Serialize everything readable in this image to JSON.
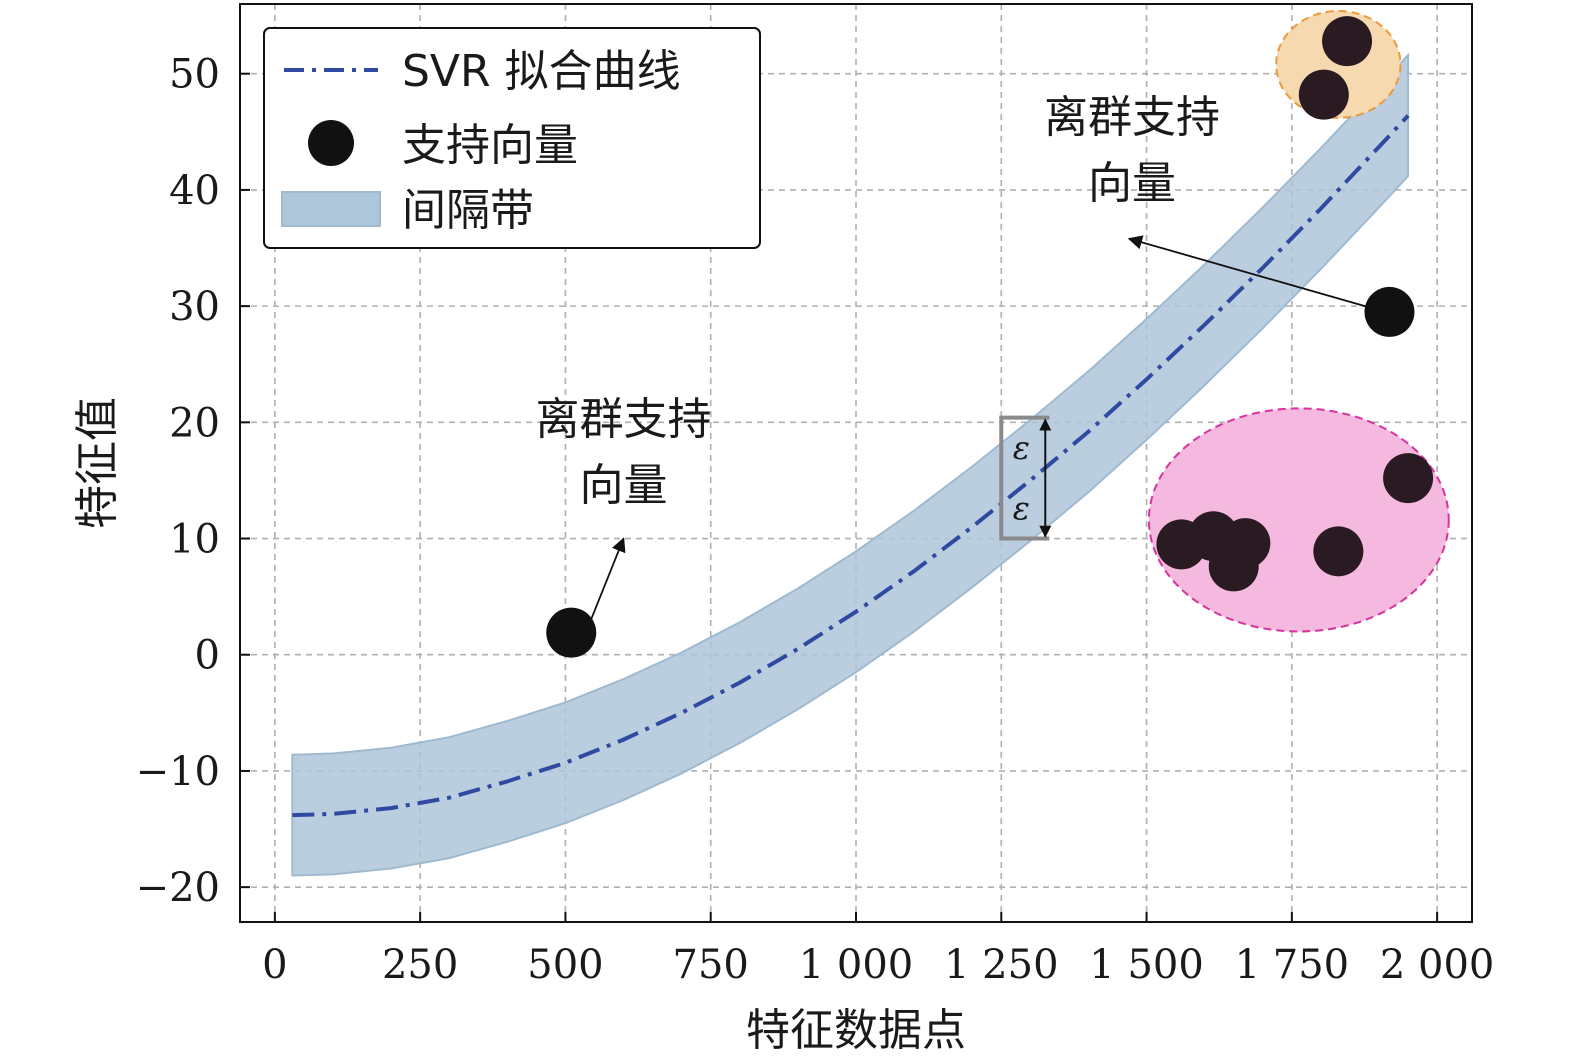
{
  "chart_data": {
    "type": "line",
    "xlabel": "特征数据点",
    "ylabel": "特征值",
    "xlim": [
      -60,
      2060
    ],
    "ylim": [
      -23,
      56
    ],
    "x_ticks": [
      0,
      250,
      500,
      750,
      1000,
      1250,
      1500,
      1750,
      2000
    ],
    "x_tick_labels": [
      "0",
      "250",
      "500",
      "750",
      "1 000",
      "1 250",
      "1 500",
      "1 750",
      "2 000"
    ],
    "y_ticks": [
      -20,
      -10,
      0,
      10,
      20,
      30,
      40,
      50
    ],
    "y_tick_labels": [
      "−20",
      "−10",
      "0",
      "10",
      "20",
      "30",
      "40",
      "50"
    ],
    "grid": true,
    "legend_position": "top-left",
    "legend": {
      "curve_label": "SVR 拟合曲线",
      "points_label": "支持向量",
      "band_label": "间隔带"
    },
    "colors": {
      "curve": "#2f4aa0",
      "band_fill": "#aec6da",
      "band_edge": "#9fbad0",
      "points": "#111111",
      "pink_cluster_fill": "#f5b8df",
      "pink_cluster_edge": "#d6339e",
      "orange_cluster_fill": "#f7d9b0",
      "orange_cluster_edge": "#e89a3c",
      "cluster_points": "#2a1a22",
      "epsilon_marker": "#8a8a8a"
    },
    "series": [
      {
        "name": "SVR 拟合曲线",
        "kind": "curve",
        "x": [
          30,
          100,
          200,
          300,
          400,
          500,
          600,
          700,
          800,
          900,
          1000,
          1100,
          1200,
          1300,
          1400,
          1500,
          1600,
          1700,
          1800,
          1900,
          1950
        ],
        "y": [
          -13.8,
          -13.7,
          -13.2,
          -12.3,
          -10.9,
          -9.3,
          -7.3,
          -5.0,
          -2.4,
          0.5,
          3.7,
          7.2,
          11.0,
          15.0,
          19.2,
          23.7,
          28.4,
          33.3,
          38.4,
          43.7,
          46.4
        ]
      },
      {
        "name": "间隔带",
        "kind": "band",
        "epsilon": 5.2
      },
      {
        "name": "支持向量",
        "kind": "scatter",
        "points": [
          {
            "x": 510,
            "y": 1.9,
            "group": "outlier"
          },
          {
            "x": 1918,
            "y": 29.5,
            "group": "outlier"
          },
          {
            "x": 1560,
            "y": 9.5,
            "group": "pink"
          },
          {
            "x": 1615,
            "y": 10.2,
            "group": "pink"
          },
          {
            "x": 1650,
            "y": 7.6,
            "group": "pink"
          },
          {
            "x": 1670,
            "y": 9.6,
            "group": "pink"
          },
          {
            "x": 1830,
            "y": 8.9,
            "group": "pink"
          },
          {
            "x": 1950,
            "y": 15.2,
            "group": "pink"
          },
          {
            "x": 1845,
            "y": 52.8,
            "group": "orange"
          },
          {
            "x": 1805,
            "y": 48.2,
            "group": "orange"
          }
        ]
      }
    ],
    "clusters": [
      {
        "name": "pink",
        "cx": 1762,
        "cy": 11.6,
        "rx": 258,
        "ry": 9.6
      },
      {
        "name": "orange",
        "cx": 1830,
        "cy": 50.8,
        "rx": 107,
        "ry": 4.6
      }
    ],
    "epsilon_marker": {
      "x": 1250,
      "y_center": 15.2,
      "label": "ε"
    },
    "annotations": [
      {
        "text_lines": [
          "离群支持",
          "向量"
        ],
        "text_x": 600,
        "text_y": 19,
        "arrow_from": [
          535,
          1.9
        ],
        "arrow_to": [
          600,
          10
        ]
      },
      {
        "text_lines": [
          "离群支持",
          "向量"
        ],
        "text_x": 1475,
        "text_y": 45,
        "arrow_from": [
          1890,
          29.8
        ],
        "arrow_to": [
          1470,
          35.8
        ]
      }
    ]
  }
}
